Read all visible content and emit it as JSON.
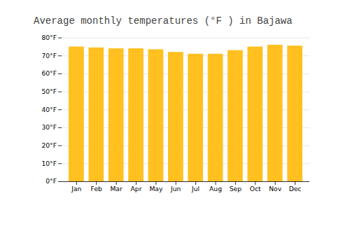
{
  "chart_data": {
    "type": "bar",
    "title": "Average monthly temperatures (°F ) in Bajawa",
    "categories": [
      "Jan",
      "Feb",
      "Mar",
      "Apr",
      "May",
      "Jun",
      "Jul",
      "Aug",
      "Sep",
      "Oct",
      "Nov",
      "Dec"
    ],
    "values": [
      75.0,
      74.5,
      74.0,
      74.0,
      73.5,
      72.0,
      71.0,
      71.0,
      73.0,
      75.0,
      76.0,
      75.5
    ],
    "color": "#FFC020",
    "ylim": [
      0,
      80
    ],
    "yticks": [
      {
        "value": 0,
        "label": "0°F"
      },
      {
        "value": 10,
        "label": "10°F"
      },
      {
        "value": 20,
        "label": "20°F"
      },
      {
        "value": 30,
        "label": "30°F"
      },
      {
        "value": 40,
        "label": "40°F"
      },
      {
        "value": 50,
        "label": "50°F"
      },
      {
        "value": 60,
        "label": "60°F"
      },
      {
        "value": 70,
        "label": "70°F"
      },
      {
        "value": 80,
        "label": "80°F"
      }
    ],
    "grid": true
  }
}
